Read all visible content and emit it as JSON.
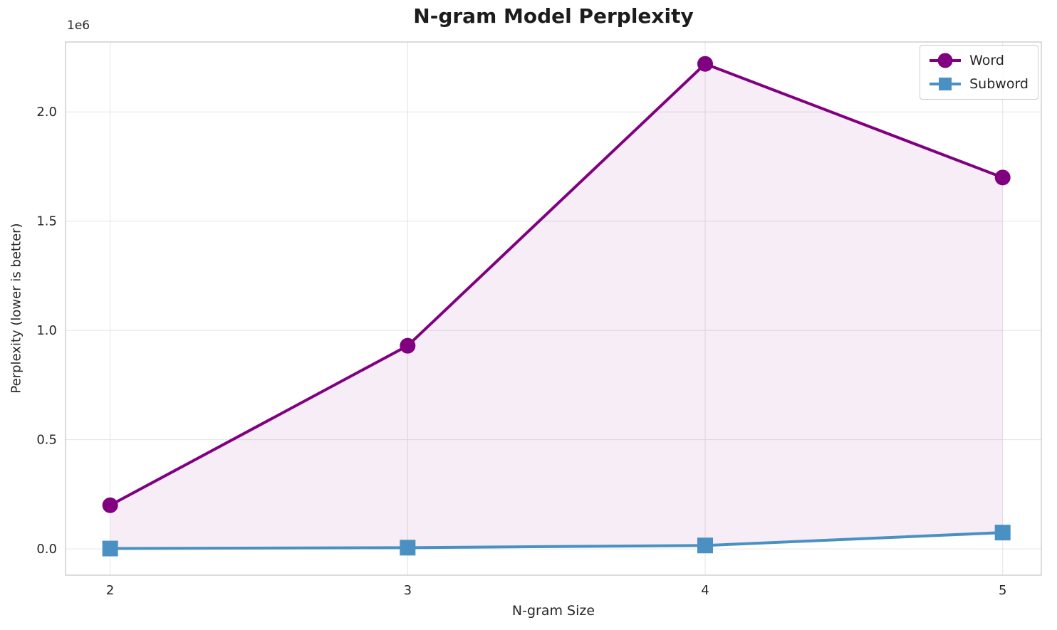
{
  "chart_data": {
    "type": "line",
    "title": "N-gram Model Perplexity",
    "xlabel": "N-gram Size",
    "ylabel": "Perplexity (lower is better)",
    "y_offset_label": "1e6",
    "x": [
      2,
      3,
      4,
      5
    ],
    "series": [
      {
        "name": "Word",
        "color": "#800080",
        "marker": "circle",
        "values": [
          200000,
          930000,
          2220000,
          1700000
        ]
      },
      {
        "name": "Subword",
        "color": "#4a90c2",
        "marker": "square",
        "values": [
          2000,
          6000,
          16000,
          75000
        ]
      }
    ],
    "fill_between": {
      "between": [
        "Word",
        "Subword"
      ],
      "color": "#800080",
      "opacity": 0.07
    },
    "xlim": [
      1.85,
      5.13
    ],
    "ylim": [
      -120000,
      2320000
    ],
    "x_ticks": [
      2,
      3,
      4,
      5
    ],
    "x_tick_labels": [
      "2",
      "3",
      "4",
      "5"
    ],
    "y_ticks": [
      0,
      500000,
      1000000,
      1500000,
      2000000
    ],
    "y_tick_labels": [
      "0.0",
      "0.5",
      "1.0",
      "1.5",
      "2.0"
    ],
    "grid": true,
    "grid_color": "#e5e5e5",
    "spine_color": "#cccccc",
    "legend_position": "upper right",
    "legend_entries": [
      "Word",
      "Subword"
    ]
  }
}
